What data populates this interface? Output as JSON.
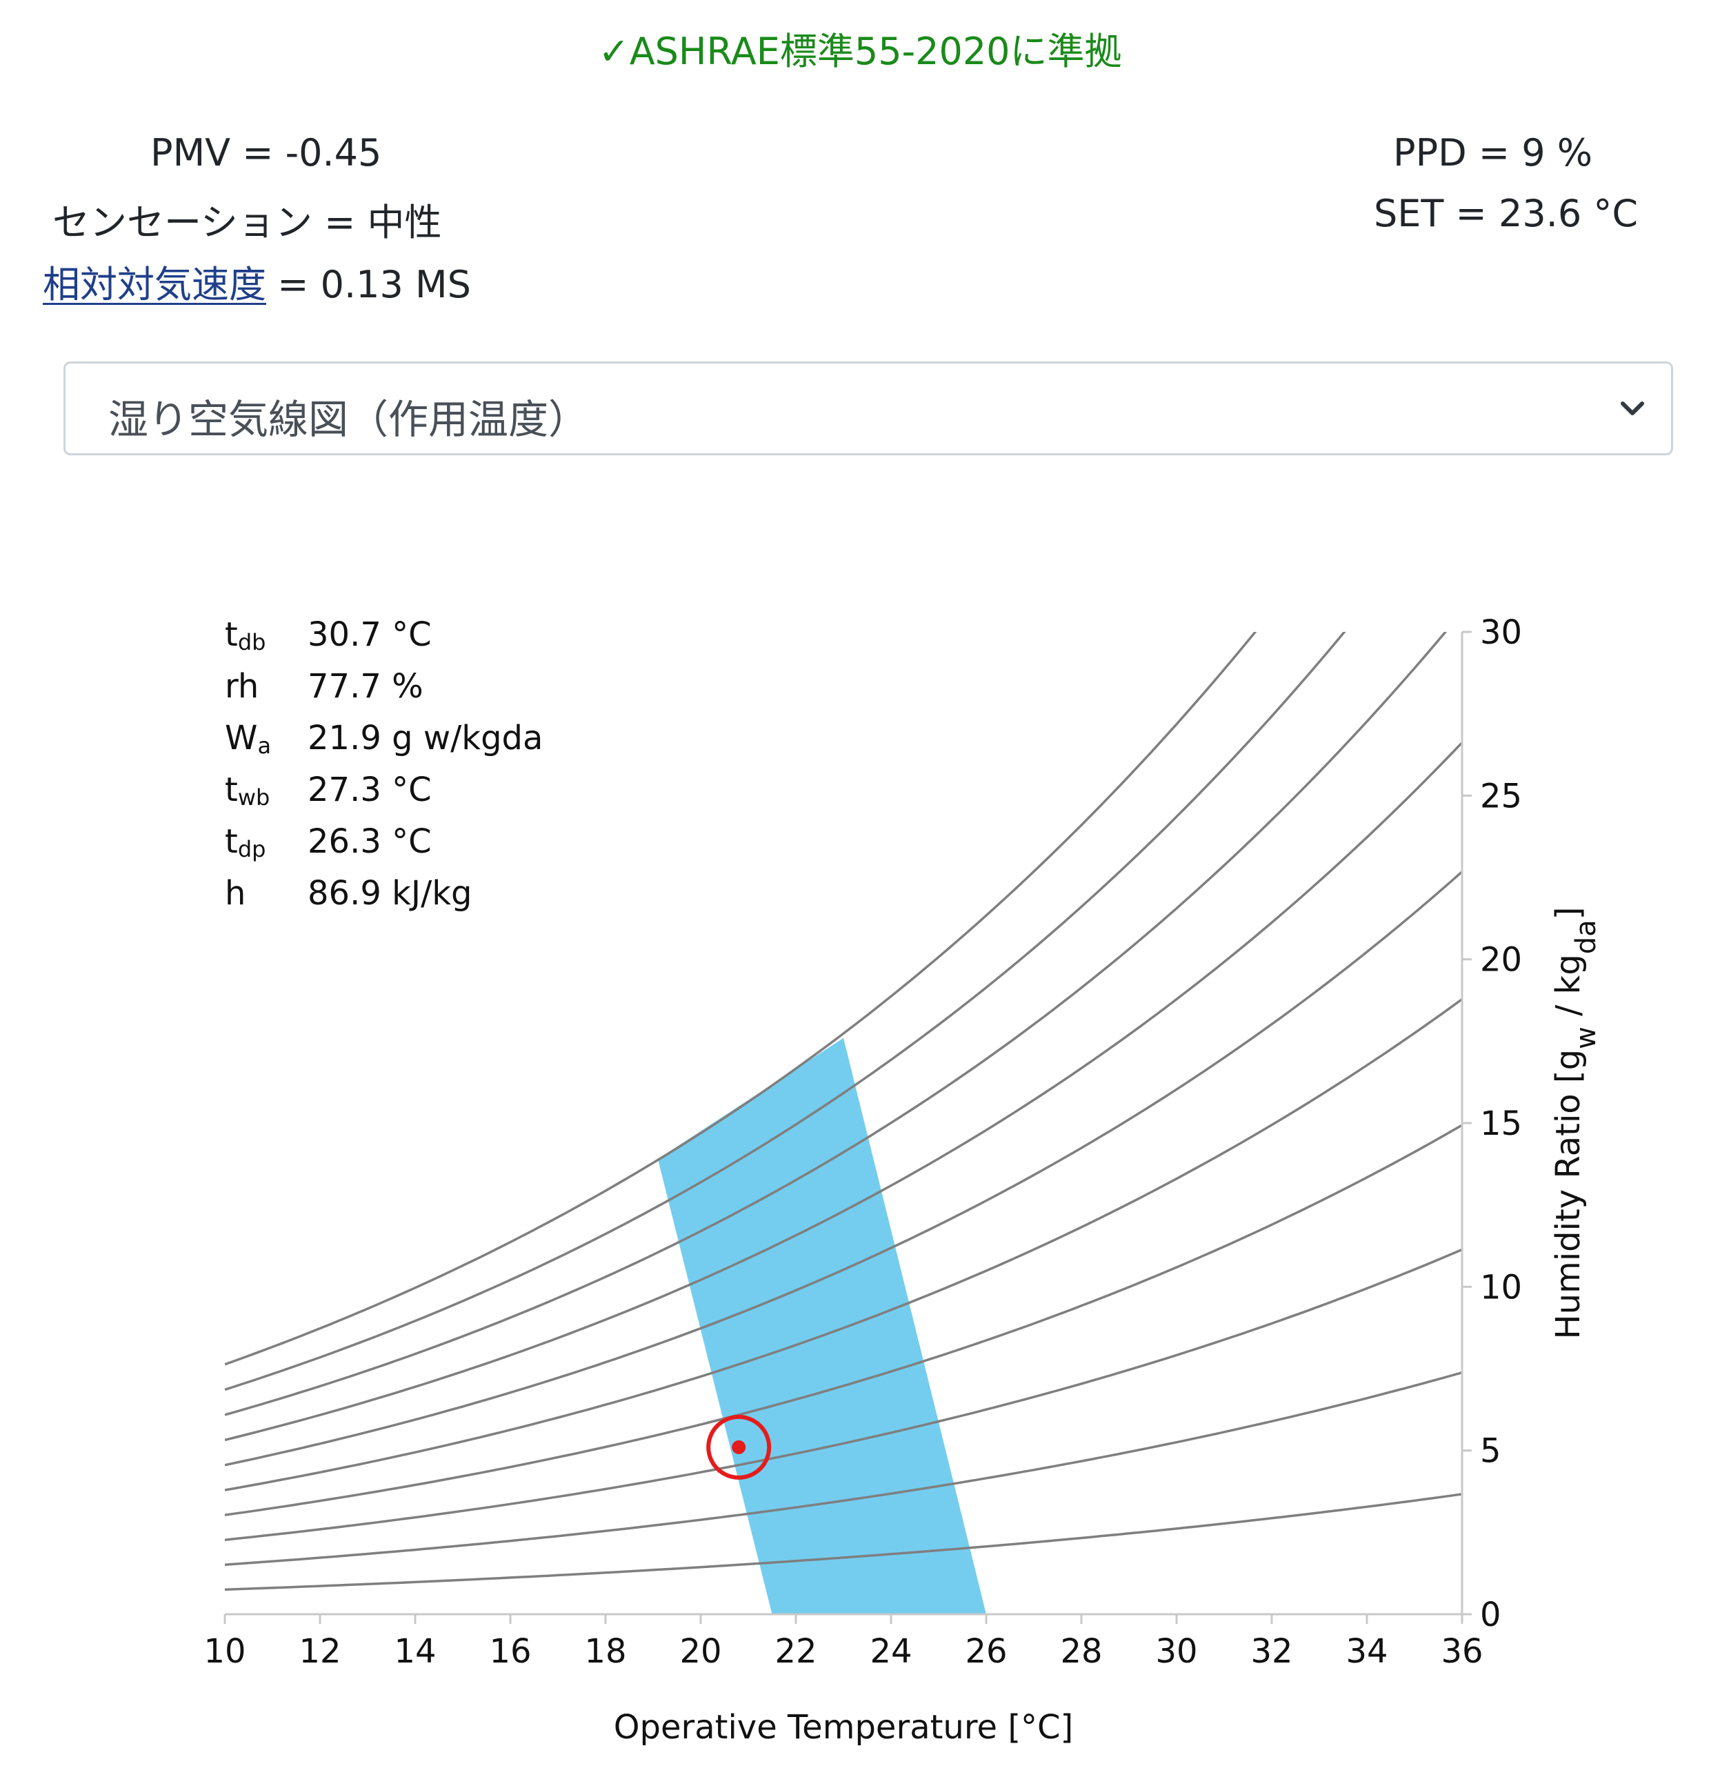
{
  "header": {
    "compliance": "✓ASHRAE標準55-2020に準拠",
    "compliance_color": "#1a8a1a"
  },
  "stats": {
    "pmv_label": "PMV = -0.45",
    "sensation_label": "センセーション = 中性",
    "air_speed_link": "相対対気速度",
    "air_speed_value": "= 0.13 MS",
    "ppd_label": "PPD = 9 %",
    "set_label": "SET = 23.6 °C"
  },
  "selector": {
    "value": "湿り空気線図（作用温度）",
    "icon": "chevron-down-icon"
  },
  "chart_data": {
    "type": "line",
    "xlabel": "Operative Temperature [°C]",
    "ylabel": "Humidity Ratio [g_w / kg_da]",
    "xlim": [
      10,
      36
    ],
    "ylim": [
      0,
      30
    ],
    "y_axis_position": "right",
    "x_ticks": [
      10,
      12,
      14,
      16,
      18,
      20,
      22,
      24,
      26,
      28,
      30,
      32,
      34,
      36
    ],
    "y_ticks": [
      0,
      5,
      10,
      15,
      20,
      25,
      30
    ],
    "rh_curves_percent": [
      10,
      20,
      30,
      40,
      50,
      60,
      70,
      80,
      90,
      100
    ],
    "curve_color": "#7f7f7f",
    "comfort_zone": {
      "color": "#74cdef",
      "polygon": [
        [
          21.5,
          0
        ],
        [
          26.0,
          0
        ],
        [
          23.0,
          17.6
        ],
        [
          19.1,
          13.9
        ]
      ]
    },
    "current_point": {
      "x": 20.8,
      "y": 5.1,
      "color": "#e51c1c"
    },
    "readout": [
      {
        "key": "t",
        "sub": "db",
        "value": "30.7 °C"
      },
      {
        "key": "rh",
        "sub": "",
        "value": "77.7 %"
      },
      {
        "key": "W",
        "sub": "a",
        "value": "21.9 g w/kgda"
      },
      {
        "key": "t",
        "sub": "wb",
        "value": "27.3 °C"
      },
      {
        "key": "t",
        "sub": "dp",
        "value": "26.3 °C"
      },
      {
        "key": "h",
        "sub": "",
        "value": "86.9 kJ/kg"
      }
    ]
  }
}
